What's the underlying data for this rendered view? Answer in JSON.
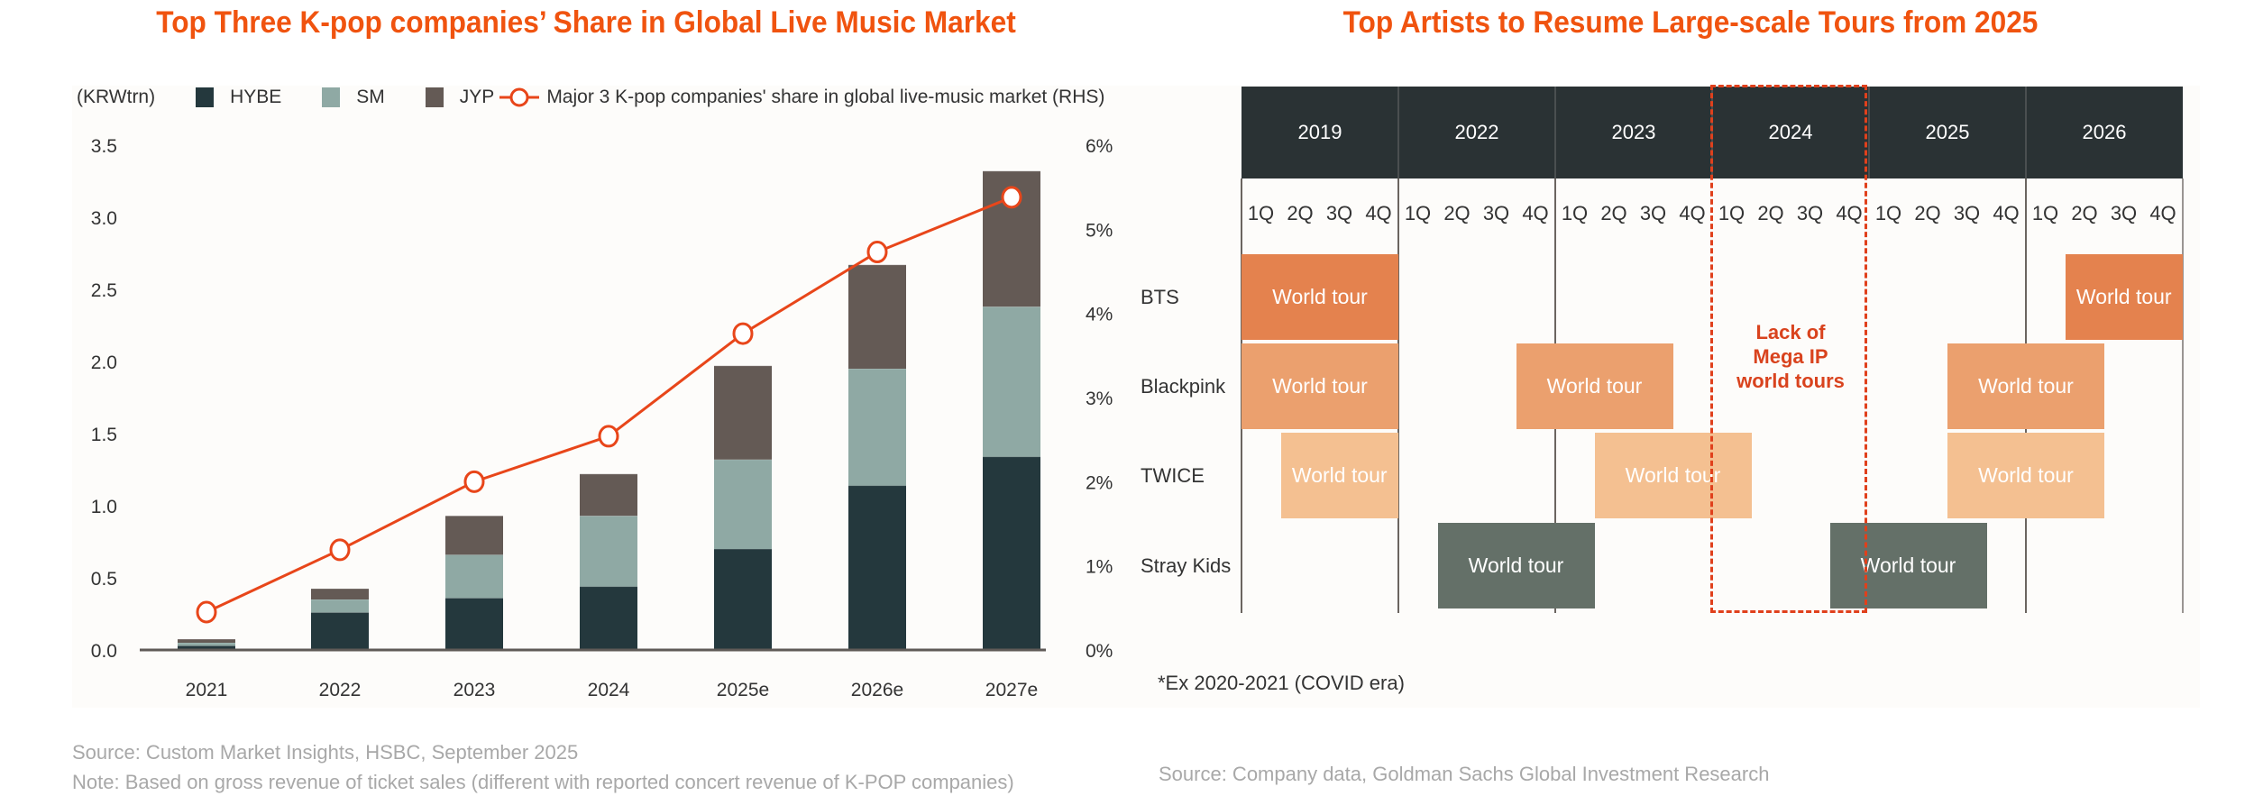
{
  "left": {
    "title": "Top Three K-pop companies’ Share in Global Live Music Market",
    "unit_label": "(KRWtrn)",
    "legend": [
      {
        "name": "HYBE",
        "color": "#24383D"
      },
      {
        "name": "SM",
        "color": "#8FA9A4"
      },
      {
        "name": "JYP",
        "color": "#645A55"
      }
    ],
    "line_legend": "Major 3 K-pop companies' share in global live-music market (RHS)",
    "source": "Source: Custom Market Insights, HSBC, September 2025",
    "note": "Note: Based on gross revenue of ticket sales (different with reported concert revenue of K-POP companies)"
  },
  "right": {
    "title": "Top Artists to Resume Large-scale Tours from 2025",
    "footnote": "*Ex 2020-2021 (COVID era)",
    "source": "Source: Company data, Goldman Sachs Global Investment Research",
    "annotation": [
      "Lack of",
      "Mega IP",
      "world tours"
    ]
  },
  "chart_data": [
    {
      "type": "bar",
      "stacked": true,
      "title": "Top Three K-pop companies’ Share in Global Live Music Market",
      "ylabel": "(KRWtrn)",
      "categories": [
        "2021",
        "2022",
        "2023",
        "2024",
        "2025e",
        "2026e",
        "2027e"
      ],
      "series": [
        {
          "name": "HYBE",
          "values": [
            0.03,
            0.26,
            0.36,
            0.44,
            0.7,
            1.14,
            1.34
          ],
          "color": "#24383D"
        },
        {
          "name": "SM",
          "values": [
            0.02,
            0.09,
            0.3,
            0.49,
            0.62,
            0.81,
            1.04
          ],
          "color": "#8FA9A4"
        },
        {
          "name": "JYP",
          "values": [
            0.025,
            0.075,
            0.27,
            0.29,
            0.65,
            0.72,
            0.94
          ],
          "color": "#645A55"
        }
      ],
      "line_series": {
        "name": "Major 3 K-pop companies' share in global live-music market (RHS)",
        "axis": "right",
        "values": [
          0.45,
          1.19,
          2.0,
          2.54,
          3.76,
          4.73,
          5.38
        ],
        "color": "#E8461A"
      },
      "ylim": [
        0,
        3.5
      ],
      "yticks": [
        "0.0",
        "0.5",
        "1.0",
        "1.5",
        "2.0",
        "2.5",
        "3.0",
        "3.5"
      ],
      "y2lim": [
        0,
        6
      ],
      "y2ticks": [
        "0%",
        "1%",
        "2%",
        "3%",
        "4%",
        "5%",
        "6%"
      ],
      "grid": false,
      "legend_position": "top"
    },
    {
      "type": "table",
      "title": "Top Artists to Resume Large-scale Tours from 2025",
      "years": [
        "2019",
        "2022",
        "2023",
        "2024",
        "2025",
        "2026"
      ],
      "quarters": [
        "1Q",
        "2Q",
        "3Q",
        "4Q"
      ],
      "artists": [
        "BTS",
        "Blackpink",
        "TWICE",
        "Stray Kids"
      ],
      "highlight_year": "2024",
      "tours": [
        {
          "artist": "BTS",
          "label": "World tour",
          "start": "2019 1Q",
          "end": "2019 4Q",
          "color": "#E4824E"
        },
        {
          "artist": "BTS",
          "label": "World tour",
          "start": "2026 2Q",
          "end": "2026 4Q",
          "color": "#E4824E"
        },
        {
          "artist": "Blackpink",
          "label": "World tour",
          "start": "2019 1Q",
          "end": "2019 4Q",
          "color": "#EBA06E"
        },
        {
          "artist": "Blackpink",
          "label": "World tour",
          "start": "2022 4Q",
          "end": "2023 3Q",
          "color": "#EBA06E"
        },
        {
          "artist": "Blackpink",
          "label": "World tour",
          "start": "2025 3Q",
          "end": "2026 2Q",
          "color": "#EBA06E"
        },
        {
          "artist": "TWICE",
          "label": "World tour",
          "start": "2019 2Q",
          "end": "2019 4Q",
          "color": "#F4C091"
        },
        {
          "artist": "TWICE",
          "label": "World tour",
          "start": "2023 2Q",
          "end": "2024 1Q",
          "color": "#F4C091"
        },
        {
          "artist": "TWICE",
          "label": "World tour",
          "start": "2025 3Q",
          "end": "2026 2Q",
          "color": "#F4C091"
        },
        {
          "artist": "Stray Kids",
          "label": "World tour",
          "start": "2022 2Q",
          "end": "2023 1Q",
          "color": "#647068"
        },
        {
          "artist": "Stray Kids",
          "label": "World tour",
          "start": "2024 4Q",
          "end": "2025 3Q",
          "color": "#647068"
        }
      ]
    }
  ]
}
